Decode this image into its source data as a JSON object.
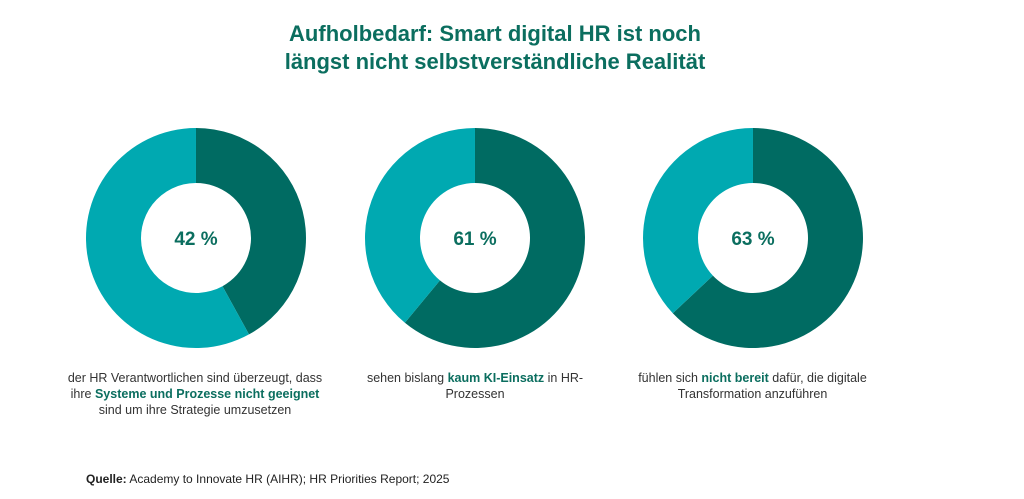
{
  "title": {
    "line1": "Aufholbedarf: Smart digital HR ist noch",
    "line2": "längst nicht selbstverständliche Realität"
  },
  "colors": {
    "highlight": "#006b62",
    "rest": "#00a9b1",
    "text_accent": "#0b6e5f"
  },
  "chart_data": [
    {
      "type": "pie",
      "variant": "donut",
      "value": 42,
      "label": "42 %",
      "caption": {
        "pre": "der HR Verantwortlichen sind überzeugt, dass ihre ",
        "bold": "Systeme und Prozesse nicht geeignet",
        "post": " sind um ihre Strategie umzusetzen"
      }
    },
    {
      "type": "pie",
      "variant": "donut",
      "value": 61,
      "label": "61 %",
      "caption": {
        "pre": "sehen bislang ",
        "bold": "kaum KI-Einsatz",
        "post": " in HR-Prozessen"
      }
    },
    {
      "type": "pie",
      "variant": "donut",
      "value": 63,
      "label": "63 %",
      "caption": {
        "pre": "fühlen sich ",
        "bold": "nicht bereit",
        "post": " dafür, die digitale Transformation anzuführen"
      }
    }
  ],
  "source": {
    "label": "Quelle:",
    "text": " Academy to Innovate HR (AIHR); HR Priorities Report; 2025"
  }
}
